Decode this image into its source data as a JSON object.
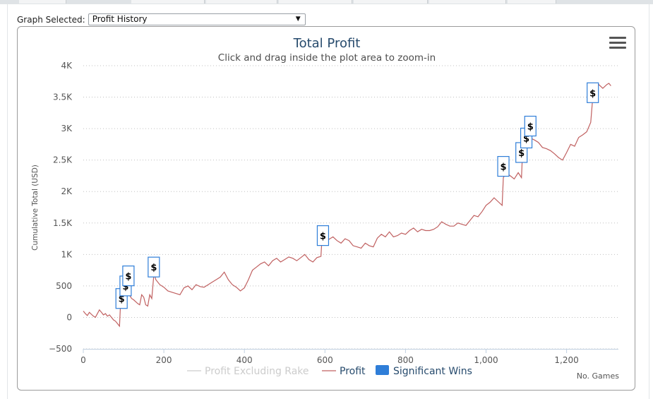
{
  "header": {
    "graph_selected_label": "Graph Selected:",
    "graph_selected_value": "Profit History"
  },
  "chart_data": {
    "type": "line",
    "title": "Total Profit",
    "subtitle": "Click and drag inside the plot area to zoom-in",
    "ylabel": "Cumulative Total (USD)",
    "xlabel": "No. Games",
    "xlim": [
      0,
      1330
    ],
    "ylim": [
      -500,
      4000
    ],
    "xticks": [
      0,
      200,
      400,
      600,
      800,
      1000,
      1200
    ],
    "xtick_labels": [
      "0",
      "200",
      "400",
      "600",
      "800",
      "1,000",
      "1,200"
    ],
    "yticks": [
      -500,
      0,
      500,
      1000,
      1500,
      2000,
      2500,
      3000,
      3500,
      4000
    ],
    "ytick_labels": [
      "−500",
      "0",
      "500",
      "1K",
      "1.5K",
      "2K",
      "2.5K",
      "3K",
      "3.5K",
      "4K"
    ],
    "grid": true,
    "legend": [
      "Profit Excluding Rake",
      "Profit",
      "Significant Wins"
    ],
    "legend_position": "bottom-center",
    "colors": {
      "profit": "#c06060",
      "excluding_rake": "#cccccc",
      "significant_wins": "#2f7ed8"
    },
    "series": [
      {
        "name": "Profit",
        "x": [
          0,
          5,
          10,
          15,
          20,
          25,
          30,
          35,
          40,
          45,
          50,
          55,
          60,
          65,
          70,
          75,
          80,
          85,
          90,
          92,
          95,
          100,
          105,
          110,
          115,
          120,
          125,
          130,
          135,
          140,
          145,
          150,
          155,
          160,
          165,
          170,
          175,
          178,
          180,
          190,
          200,
          210,
          220,
          230,
          240,
          250,
          260,
          270,
          280,
          290,
          300,
          310,
          320,
          330,
          340,
          350,
          360,
          370,
          380,
          390,
          400,
          410,
          420,
          430,
          440,
          450,
          460,
          470,
          480,
          490,
          500,
          510,
          520,
          530,
          540,
          550,
          560,
          570,
          580,
          590,
          593,
          600,
          610,
          620,
          630,
          640,
          650,
          660,
          670,
          680,
          690,
          700,
          710,
          720,
          730,
          740,
          750,
          760,
          770,
          780,
          790,
          800,
          810,
          820,
          830,
          840,
          850,
          860,
          870,
          880,
          890,
          900,
          910,
          920,
          930,
          940,
          950,
          960,
          970,
          980,
          990,
          1000,
          1010,
          1020,
          1030,
          1040,
          1043,
          1050,
          1060,
          1070,
          1080,
          1088,
          1090,
          1100,
          1102,
          1110,
          1120,
          1130,
          1140,
          1150,
          1160,
          1170,
          1180,
          1190,
          1200,
          1210,
          1220,
          1230,
          1240,
          1250,
          1260,
          1265,
          1270,
          1280,
          1290,
          1300,
          1305,
          1310
        ],
        "y": [
          100,
          60,
          30,
          80,
          50,
          20,
          0,
          60,
          120,
          80,
          40,
          60,
          20,
          40,
          0,
          -40,
          -60,
          -100,
          -140,
          160,
          300,
          520,
          480,
          420,
          350,
          300,
          280,
          250,
          220,
          200,
          360,
          320,
          200,
          180,
          360,
          300,
          660,
          650,
          600,
          520,
          480,
          420,
          400,
          380,
          360,
          470,
          500,
          440,
          520,
          490,
          480,
          520,
          560,
          600,
          640,
          720,
          600,
          520,
          480,
          420,
          470,
          600,
          750,
          800,
          850,
          880,
          820,
          900,
          940,
          880,
          920,
          960,
          940,
          900,
          950,
          1000,
          920,
          880,
          950,
          970,
          1280,
          1200,
          1240,
          1280,
          1220,
          1180,
          1250,
          1220,
          1140,
          1120,
          1100,
          1180,
          1140,
          1120,
          1260,
          1320,
          1280,
          1360,
          1280,
          1300,
          1340,
          1320,
          1380,
          1420,
          1360,
          1400,
          1380,
          1380,
          1400,
          1440,
          1520,
          1480,
          1450,
          1450,
          1500,
          1480,
          1460,
          1540,
          1620,
          1600,
          1680,
          1780,
          1830,
          1900,
          1840,
          1780,
          2220,
          2300,
          2250,
          2200,
          2300,
          2220,
          2520,
          2600,
          2860,
          2850,
          2820,
          2780,
          2700,
          2680,
          2650,
          2600,
          2540,
          2500,
          2620,
          2750,
          2720,
          2860,
          2900,
          2950,
          3100,
          3500,
          3550,
          3700,
          3640,
          3700,
          3720,
          3680
        ]
      }
    ],
    "significant_wins": [
      {
        "x": 95,
        "y": 300,
        "label": "$"
      },
      {
        "x": 105,
        "y": 500,
        "label": "$"
      },
      {
        "x": 112,
        "y": 660,
        "label": "$"
      },
      {
        "x": 175,
        "y": 800,
        "label": "$"
      },
      {
        "x": 595,
        "y": 1300,
        "label": "$"
      },
      {
        "x": 1043,
        "y": 2400,
        "label": "$"
      },
      {
        "x": 1088,
        "y": 2620,
        "label": "$"
      },
      {
        "x": 1100,
        "y": 2850,
        "label": "$"
      },
      {
        "x": 1110,
        "y": 3040,
        "label": "$"
      },
      {
        "x": 1265,
        "y": 3570,
        "label": "$"
      }
    ]
  }
}
